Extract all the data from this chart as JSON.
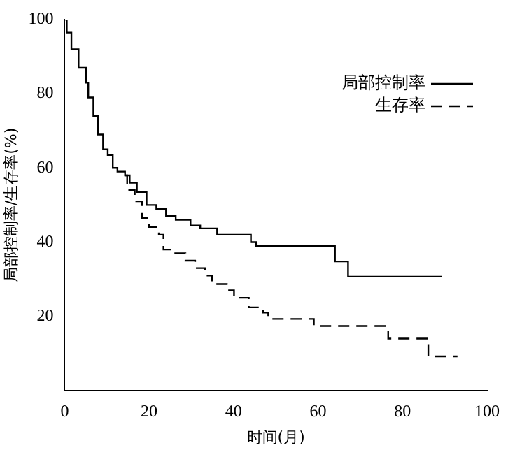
{
  "chart_data": {
    "type": "step",
    "xlabel": "时间(月)",
    "ylabel": "局部控制率/生存率(%)",
    "xlim": [
      0,
      100
    ],
    "xticks": [
      0,
      20,
      40,
      60,
      80,
      100
    ],
    "ylim": [
      0,
      100
    ],
    "yticks": [
      20,
      40,
      60,
      80,
      100
    ],
    "grid": false,
    "legend": "top right",
    "series": [
      {
        "name": "局部控制率",
        "color": "#000000",
        "line_style": "solid",
        "x": [
          0,
          0.5,
          1.6,
          3.3,
          5.1,
          5.6,
          6.8,
          7.9,
          9.1,
          10.2,
          11.4,
          12.5,
          14.3,
          15.4,
          17.1,
          19.4,
          21.7,
          24,
          26.3,
          29.8,
          32.1,
          36.1,
          44.1,
          45.3,
          64,
          67.1,
          89.3
        ],
        "values": [
          100,
          96.5,
          92,
          87,
          83,
          79,
          74,
          69,
          65,
          63.5,
          60,
          59,
          58,
          56,
          53.5,
          50,
          49,
          47,
          46,
          44.5,
          43.7,
          42,
          40,
          39,
          34.8,
          30.7,
          30.7
        ]
      },
      {
        "name": "生存率",
        "color": "#000000",
        "line_style": "dashed",
        "x": [
          14.3,
          14.8,
          16.6,
          18.3,
          20,
          22.3,
          23.4,
          25.8,
          28.6,
          30.9,
          33.2,
          34.9,
          38.4,
          40.1,
          43.6,
          47,
          48.2,
          59,
          76.6,
          86.1,
          93
        ],
        "values": [
          58,
          54,
          51,
          46.5,
          44,
          42,
          38,
          37,
          35,
          33,
          31,
          28.7,
          27,
          25,
          22.4,
          21,
          19.3,
          17.4,
          14,
          9.2,
          9.2
        ]
      }
    ]
  }
}
